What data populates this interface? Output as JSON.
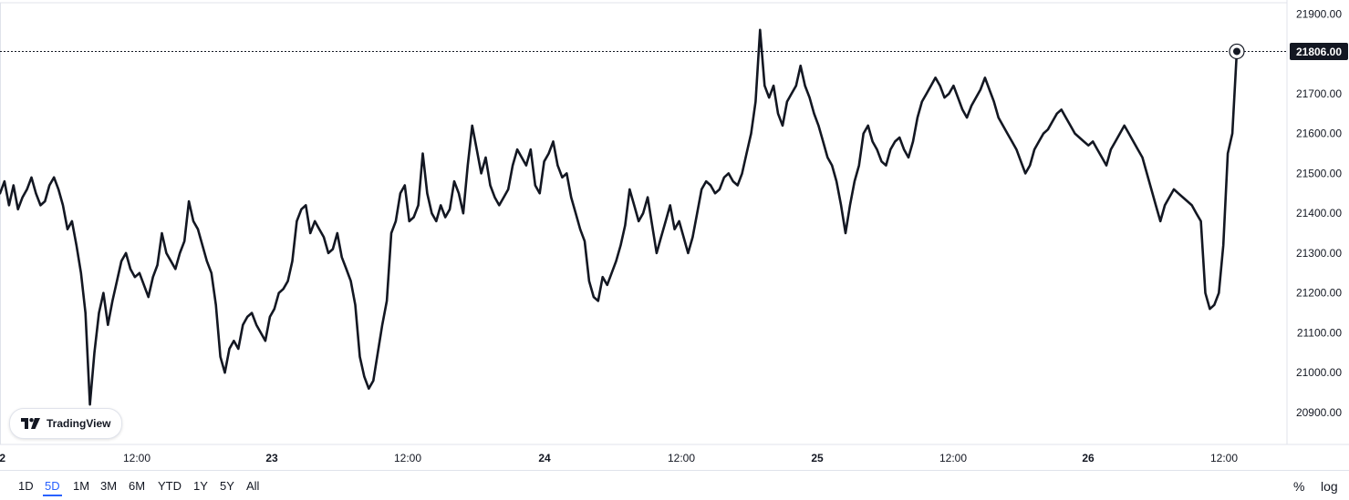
{
  "chart_data": {
    "type": "line",
    "x_labels": [
      "2",
      "12:00",
      "23",
      "12:00",
      "24",
      "12:00",
      "25",
      "12:00",
      "26",
      "12:00"
    ],
    "x_day_labels": [
      "2",
      "23",
      "24",
      "25",
      "26"
    ],
    "y_ticks": [
      "21900.00",
      "21800.00",
      "21700.00",
      "21600.00",
      "21500.00",
      "21400.00",
      "21300.00",
      "21200.00",
      "21100.00",
      "21000.00",
      "20900.00"
    ],
    "ylim": [
      20820,
      21935
    ],
    "last_value": "21806.00",
    "values": [
      21450,
      21480,
      21420,
      21470,
      21410,
      21440,
      21460,
      21490,
      21450,
      21420,
      21430,
      21470,
      21490,
      21460,
      21420,
      21360,
      21380,
      21320,
      21250,
      21150,
      20920,
      21050,
      21150,
      21200,
      21120,
      21180,
      21230,
      21280,
      21300,
      21260,
      21240,
      21250,
      21220,
      21190,
      21240,
      21270,
      21350,
      21300,
      21280,
      21260,
      21300,
      21330,
      21430,
      21380,
      21360,
      21320,
      21280,
      21250,
      21170,
      21040,
      21000,
      21060,
      21080,
      21060,
      21120,
      21140,
      21150,
      21120,
      21100,
      21080,
      21140,
      21160,
      21200,
      21210,
      21230,
      21280,
      21380,
      21410,
      21420,
      21350,
      21380,
      21360,
      21340,
      21300,
      21310,
      21350,
      21290,
      21260,
      21230,
      21170,
      21040,
      20990,
      20960,
      20980,
      21050,
      21120,
      21180,
      21350,
      21380,
      21450,
      21470,
      21380,
      21390,
      21420,
      21550,
      21450,
      21400,
      21380,
      21420,
      21390,
      21410,
      21480,
      21450,
      21400,
      21520,
      21620,
      21560,
      21500,
      21540,
      21470,
      21440,
      21420,
      21440,
      21460,
      21520,
      21560,
      21540,
      21520,
      21560,
      21470,
      21450,
      21530,
      21550,
      21580,
      21520,
      21490,
      21500,
      21440,
      21400,
      21360,
      21330,
      21230,
      21190,
      21180,
      21240,
      21220,
      21250,
      21280,
      21320,
      21370,
      21460,
      21420,
      21380,
      21400,
      21440,
      21370,
      21300,
      21340,
      21380,
      21420,
      21360,
      21380,
      21340,
      21300,
      21340,
      21400,
      21460,
      21480,
      21470,
      21450,
      21460,
      21490,
      21500,
      21480,
      21470,
      21500,
      21550,
      21600,
      21680,
      21860,
      21720,
      21690,
      21720,
      21650,
      21620,
      21680,
      21700,
      21720,
      21770,
      21720,
      21690,
      21650,
      21620,
      21580,
      21540,
      21520,
      21480,
      21420,
      21350,
      21420,
      21480,
      21520,
      21600,
      21620,
      21580,
      21560,
      21530,
      21520,
      21560,
      21580,
      21590,
      21560,
      21540,
      21580,
      21640,
      21680,
      21700,
      21720,
      21740,
      21720,
      21690,
      21700,
      21720,
      21690,
      21660,
      21640,
      21670,
      21690,
      21710,
      21740,
      21710,
      21680,
      21640,
      21620,
      21600,
      21580,
      21560,
      21530,
      21500,
      21520,
      21560,
      21580,
      21600,
      21610,
      21630,
      21650,
      21660,
      21640,
      21620,
      21600,
      21590,
      21580,
      21570,
      21580,
      21560,
      21540,
      21520,
      21560,
      21580,
      21600,
      21620,
      21600,
      21580,
      21560,
      21540,
      21500,
      21460,
      21420,
      21380,
      21420,
      21440,
      21460,
      21450,
      21440,
      21430,
      21420,
      21400,
      21380,
      21200,
      21160,
      21170,
      21200,
      21320,
      21550,
      21600,
      21806
    ]
  },
  "watermark": {
    "text": "TradingView",
    "icon": "tradingview-logo-icon"
  },
  "toolbar": {
    "ranges": [
      "1D",
      "5D",
      "1M",
      "3M",
      "6M",
      "YTD",
      "1Y",
      "5Y",
      "All"
    ],
    "active_range": "5D",
    "percent_label": "%",
    "log_label": "log"
  },
  "colors": {
    "line": "#131722",
    "accent": "#2962ff",
    "border": "#e0e3eb",
    "label_bg": "#131722"
  }
}
